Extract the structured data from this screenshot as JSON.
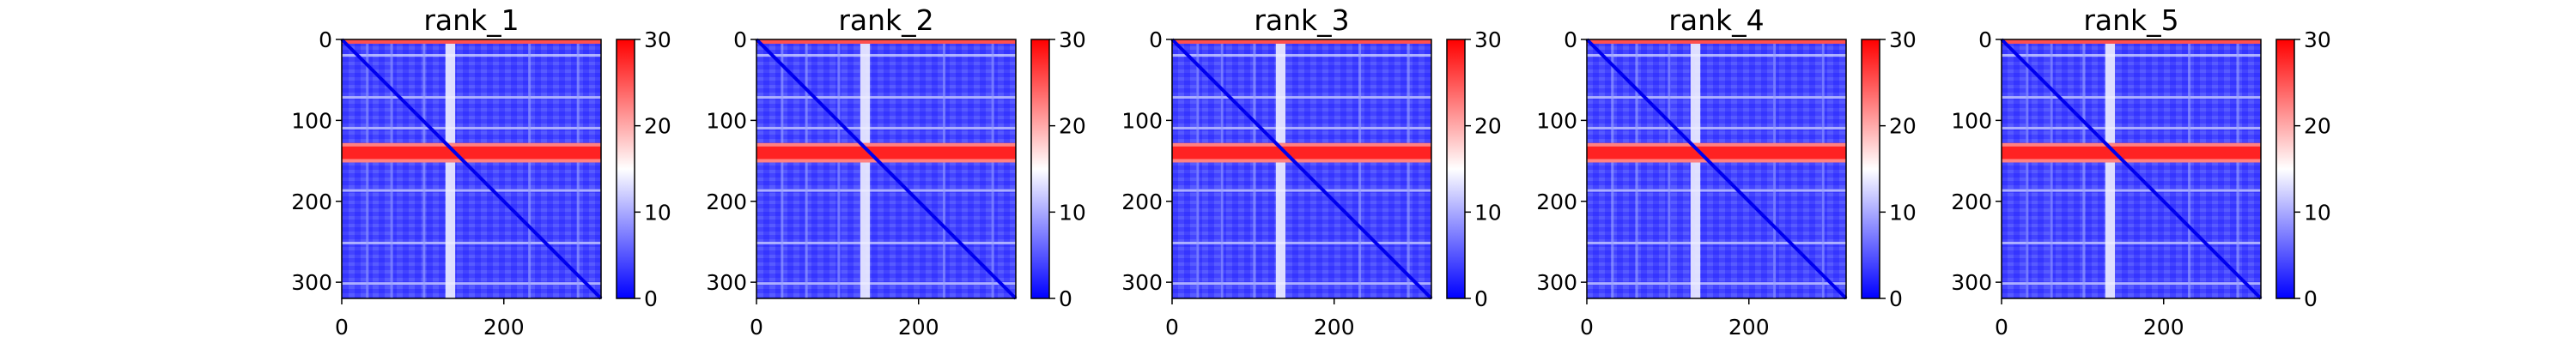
{
  "chart_data": {
    "type": "heatmap",
    "description_colormap": "bwr",
    "colormap_colors": [
      "#0000ff",
      "#ffffff",
      "#ff0000"
    ],
    "panels": [
      {
        "title": "rank_1",
        "x_ticks": [
          0,
          200
        ],
        "y_ticks": [
          0,
          100,
          200,
          300
        ],
        "xlim": [
          0,
          320
        ],
        "ylim": [
          320,
          0
        ],
        "colorbar_ticks": [
          0,
          10,
          20,
          30
        ],
        "clim": [
          0,
          30
        ],
        "band_rows": [
          128,
          152
        ],
        "band_cols": [
          128,
          140
        ],
        "band_value": 28
      },
      {
        "title": "rank_2",
        "x_ticks": [
          0,
          200
        ],
        "y_ticks": [
          0,
          100,
          200,
          300
        ],
        "xlim": [
          0,
          320
        ],
        "ylim": [
          320,
          0
        ],
        "colorbar_ticks": [
          0,
          10,
          20,
          30
        ],
        "clim": [
          0,
          30
        ],
        "band_rows": [
          128,
          152
        ],
        "band_cols": [
          128,
          140
        ],
        "band_value": 28
      },
      {
        "title": "rank_3",
        "x_ticks": [
          0,
          200
        ],
        "y_ticks": [
          0,
          100,
          200,
          300
        ],
        "xlim": [
          0,
          320
        ],
        "ylim": [
          320,
          0
        ],
        "colorbar_ticks": [
          0,
          10,
          20,
          30
        ],
        "clim": [
          0,
          30
        ],
        "band_rows": [
          128,
          152
        ],
        "band_cols": [
          128,
          140
        ],
        "band_value": 28
      },
      {
        "title": "rank_4",
        "x_ticks": [
          0,
          200
        ],
        "y_ticks": [
          0,
          100,
          200,
          300
        ],
        "xlim": [
          0,
          320
        ],
        "ylim": [
          320,
          0
        ],
        "colorbar_ticks": [
          0,
          10,
          20,
          30
        ],
        "clim": [
          0,
          30
        ],
        "band_rows": [
          128,
          152
        ],
        "band_cols": [
          128,
          140
        ],
        "band_value": 28
      },
      {
        "title": "rank_5",
        "x_ticks": [
          0,
          200
        ],
        "y_ticks": [
          0,
          100,
          200,
          300
        ],
        "xlim": [
          0,
          320
        ],
        "ylim": [
          320,
          0
        ],
        "colorbar_ticks": [
          0,
          10,
          20,
          30
        ],
        "clim": [
          0,
          30
        ],
        "band_rows": [
          128,
          152
        ],
        "band_cols": [
          128,
          140
        ],
        "band_value": 28
      }
    ]
  }
}
